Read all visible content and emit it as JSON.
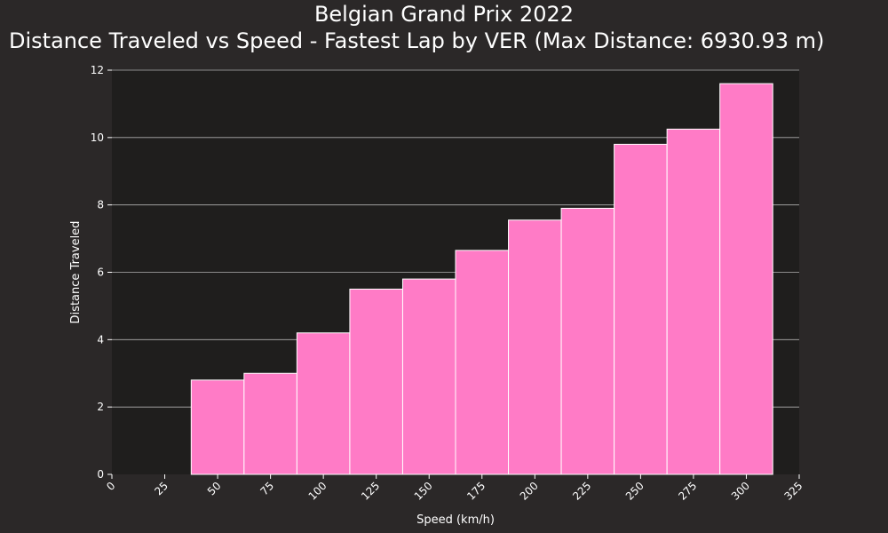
{
  "chart_data": {
    "type": "bar",
    "title": "Belgian Grand Prix 2022",
    "subtitle": "Distance Traveled vs Speed - Fastest Lap by VER (Max Distance: 6930.93 m)",
    "xlabel": "Speed (km/h)",
    "ylabel": "Distance Traveled",
    "xlim": [
      0,
      325
    ],
    "ylim": [
      0,
      12
    ],
    "x_ticks": [
      0,
      25,
      50,
      75,
      100,
      125,
      150,
      175,
      200,
      225,
      250,
      275,
      300,
      325
    ],
    "y_ticks": [
      0,
      2,
      4,
      6,
      8,
      10,
      12
    ],
    "grid": "horizontal",
    "bin_width": 25,
    "bins": [
      {
        "start": 37.5,
        "end": 62.5,
        "value": 2.8
      },
      {
        "start": 62.5,
        "end": 87.5,
        "value": 3.0
      },
      {
        "start": 87.5,
        "end": 112.5,
        "value": 4.2
      },
      {
        "start": 112.5,
        "end": 137.5,
        "value": 5.5
      },
      {
        "start": 137.5,
        "end": 162.5,
        "value": 5.8
      },
      {
        "start": 162.5,
        "end": 187.5,
        "value": 6.65
      },
      {
        "start": 187.5,
        "end": 212.5,
        "value": 7.55
      },
      {
        "start": 212.5,
        "end": 237.5,
        "value": 7.9
      },
      {
        "start": 237.5,
        "end": 262.5,
        "value": 9.8
      },
      {
        "start": 262.5,
        "end": 287.5,
        "value": 10.25
      },
      {
        "start": 287.5,
        "end": 312.5,
        "value": 11.6
      }
    ],
    "colors": {
      "background": "#2b2828",
      "plot_background": "#1f1e1d",
      "bar_fill": "#ff7bc6",
      "bar_edge": "#ffffff",
      "grid": "#b0b0b0",
      "text": "#ffffff"
    }
  }
}
